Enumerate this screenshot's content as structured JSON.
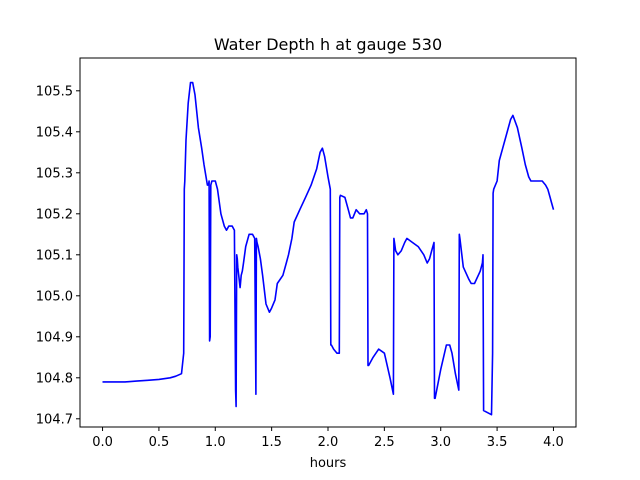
{
  "chart_data": {
    "type": "line",
    "title": "Water Depth h at gauge 530",
    "xlabel": "hours",
    "ylabel": "",
    "xlim": [
      -0.2,
      4.2
    ],
    "ylim": [
      104.68,
      105.58
    ],
    "xticks": [
      0.0,
      0.5,
      1.0,
      1.5,
      2.0,
      2.5,
      3.0,
      3.5,
      4.0
    ],
    "xtick_labels": [
      "0.0",
      "0.5",
      "1.0",
      "1.5",
      "2.0",
      "2.5",
      "3.0",
      "3.5",
      "4.0"
    ],
    "yticks": [
      104.7,
      104.8,
      104.9,
      105.0,
      105.1,
      105.2,
      105.3,
      105.4,
      105.5
    ],
    "ytick_labels": [
      "104.7",
      "104.8",
      "104.9",
      "105.0",
      "105.1",
      "105.2",
      "105.3",
      "105.4",
      "105.5"
    ],
    "grid": false,
    "series": [
      {
        "color": "#0000ff",
        "x": [
          0.0,
          0.1,
          0.2,
          0.3,
          0.4,
          0.5,
          0.6,
          0.65,
          0.7,
          0.72,
          0.725,
          0.73,
          0.74,
          0.76,
          0.78,
          0.8,
          0.82,
          0.85,
          0.88,
          0.9,
          0.93,
          0.94,
          0.945,
          0.95,
          0.955,
          0.96,
          0.97,
          0.98,
          1.0,
          1.02,
          1.05,
          1.08,
          1.1,
          1.12,
          1.15,
          1.17,
          1.18,
          1.185,
          1.19,
          1.195,
          1.2,
          1.22,
          1.23,
          1.24,
          1.25,
          1.27,
          1.3,
          1.33,
          1.35,
          1.36,
          1.365,
          1.37,
          1.38,
          1.4,
          1.42,
          1.45,
          1.48,
          1.5,
          1.53,
          1.55,
          1.6,
          1.63,
          1.65,
          1.68,
          1.7,
          1.75,
          1.8,
          1.85,
          1.9,
          1.93,
          1.95,
          1.97,
          2.0,
          2.02,
          2.025,
          2.03,
          2.05,
          2.08,
          2.1,
          2.105,
          2.11,
          2.15,
          2.18,
          2.2,
          2.22,
          2.25,
          2.28,
          2.3,
          2.32,
          2.34,
          2.35,
          2.355,
          2.36,
          2.4,
          2.45,
          2.5,
          2.55,
          2.58,
          2.585,
          2.59,
          2.6,
          2.62,
          2.65,
          2.68,
          2.7,
          2.75,
          2.8,
          2.85,
          2.88,
          2.9,
          2.92,
          2.94,
          2.945,
          2.95,
          3.0,
          3.05,
          3.08,
          3.1,
          3.13,
          3.16,
          3.165,
          3.17,
          3.2,
          3.25,
          3.27,
          3.3,
          3.35,
          3.37,
          3.375,
          3.38,
          3.45,
          3.46,
          3.465,
          3.47,
          3.5,
          3.52,
          3.55,
          3.58,
          3.62,
          3.64,
          3.68,
          3.72,
          3.75,
          3.78,
          3.8,
          3.85,
          3.9,
          3.93,
          3.95,
          3.97,
          3.98,
          4.0
        ],
        "y": [
          104.79,
          104.79,
          104.79,
          104.792,
          104.794,
          104.796,
          104.8,
          104.804,
          104.81,
          104.86,
          105.26,
          105.28,
          105.38,
          105.47,
          105.52,
          105.52,
          105.49,
          105.41,
          105.36,
          105.32,
          105.27,
          105.27,
          105.28,
          104.89,
          104.9,
          105.27,
          105.28,
          105.28,
          105.28,
          105.26,
          105.2,
          105.17,
          105.16,
          105.17,
          105.17,
          105.16,
          104.77,
          104.73,
          105.1,
          105.09,
          105.07,
          105.02,
          105.05,
          105.06,
          105.08,
          105.12,
          105.15,
          105.15,
          105.14,
          104.76,
          105.14,
          105.13,
          105.12,
          105.09,
          105.05,
          104.98,
          104.96,
          104.97,
          104.99,
          105.03,
          105.05,
          105.08,
          105.1,
          105.14,
          105.18,
          105.21,
          105.24,
          105.27,
          105.31,
          105.35,
          105.36,
          105.34,
          105.29,
          105.26,
          104.88,
          104.88,
          104.87,
          104.86,
          104.86,
          105.24,
          105.245,
          105.24,
          105.21,
          105.19,
          105.19,
          105.21,
          105.2,
          105.2,
          105.2,
          105.21,
          105.2,
          104.83,
          104.83,
          104.85,
          104.87,
          104.86,
          104.8,
          104.76,
          105.14,
          105.13,
          105.11,
          105.1,
          105.11,
          105.13,
          105.14,
          105.13,
          105.12,
          105.1,
          105.08,
          105.09,
          105.11,
          105.13,
          104.75,
          104.75,
          104.82,
          104.88,
          104.88,
          104.86,
          104.81,
          104.77,
          105.15,
          105.14,
          105.07,
          105.04,
          105.03,
          105.03,
          105.06,
          105.08,
          105.1,
          104.72,
          104.71,
          104.86,
          105.25,
          105.26,
          105.28,
          105.33,
          105.36,
          105.39,
          105.43,
          105.44,
          105.41,
          105.36,
          105.32,
          105.29,
          105.28,
          105.28,
          105.28,
          105.27,
          105.26,
          105.24,
          105.23,
          105.21
        ]
      }
    ]
  }
}
